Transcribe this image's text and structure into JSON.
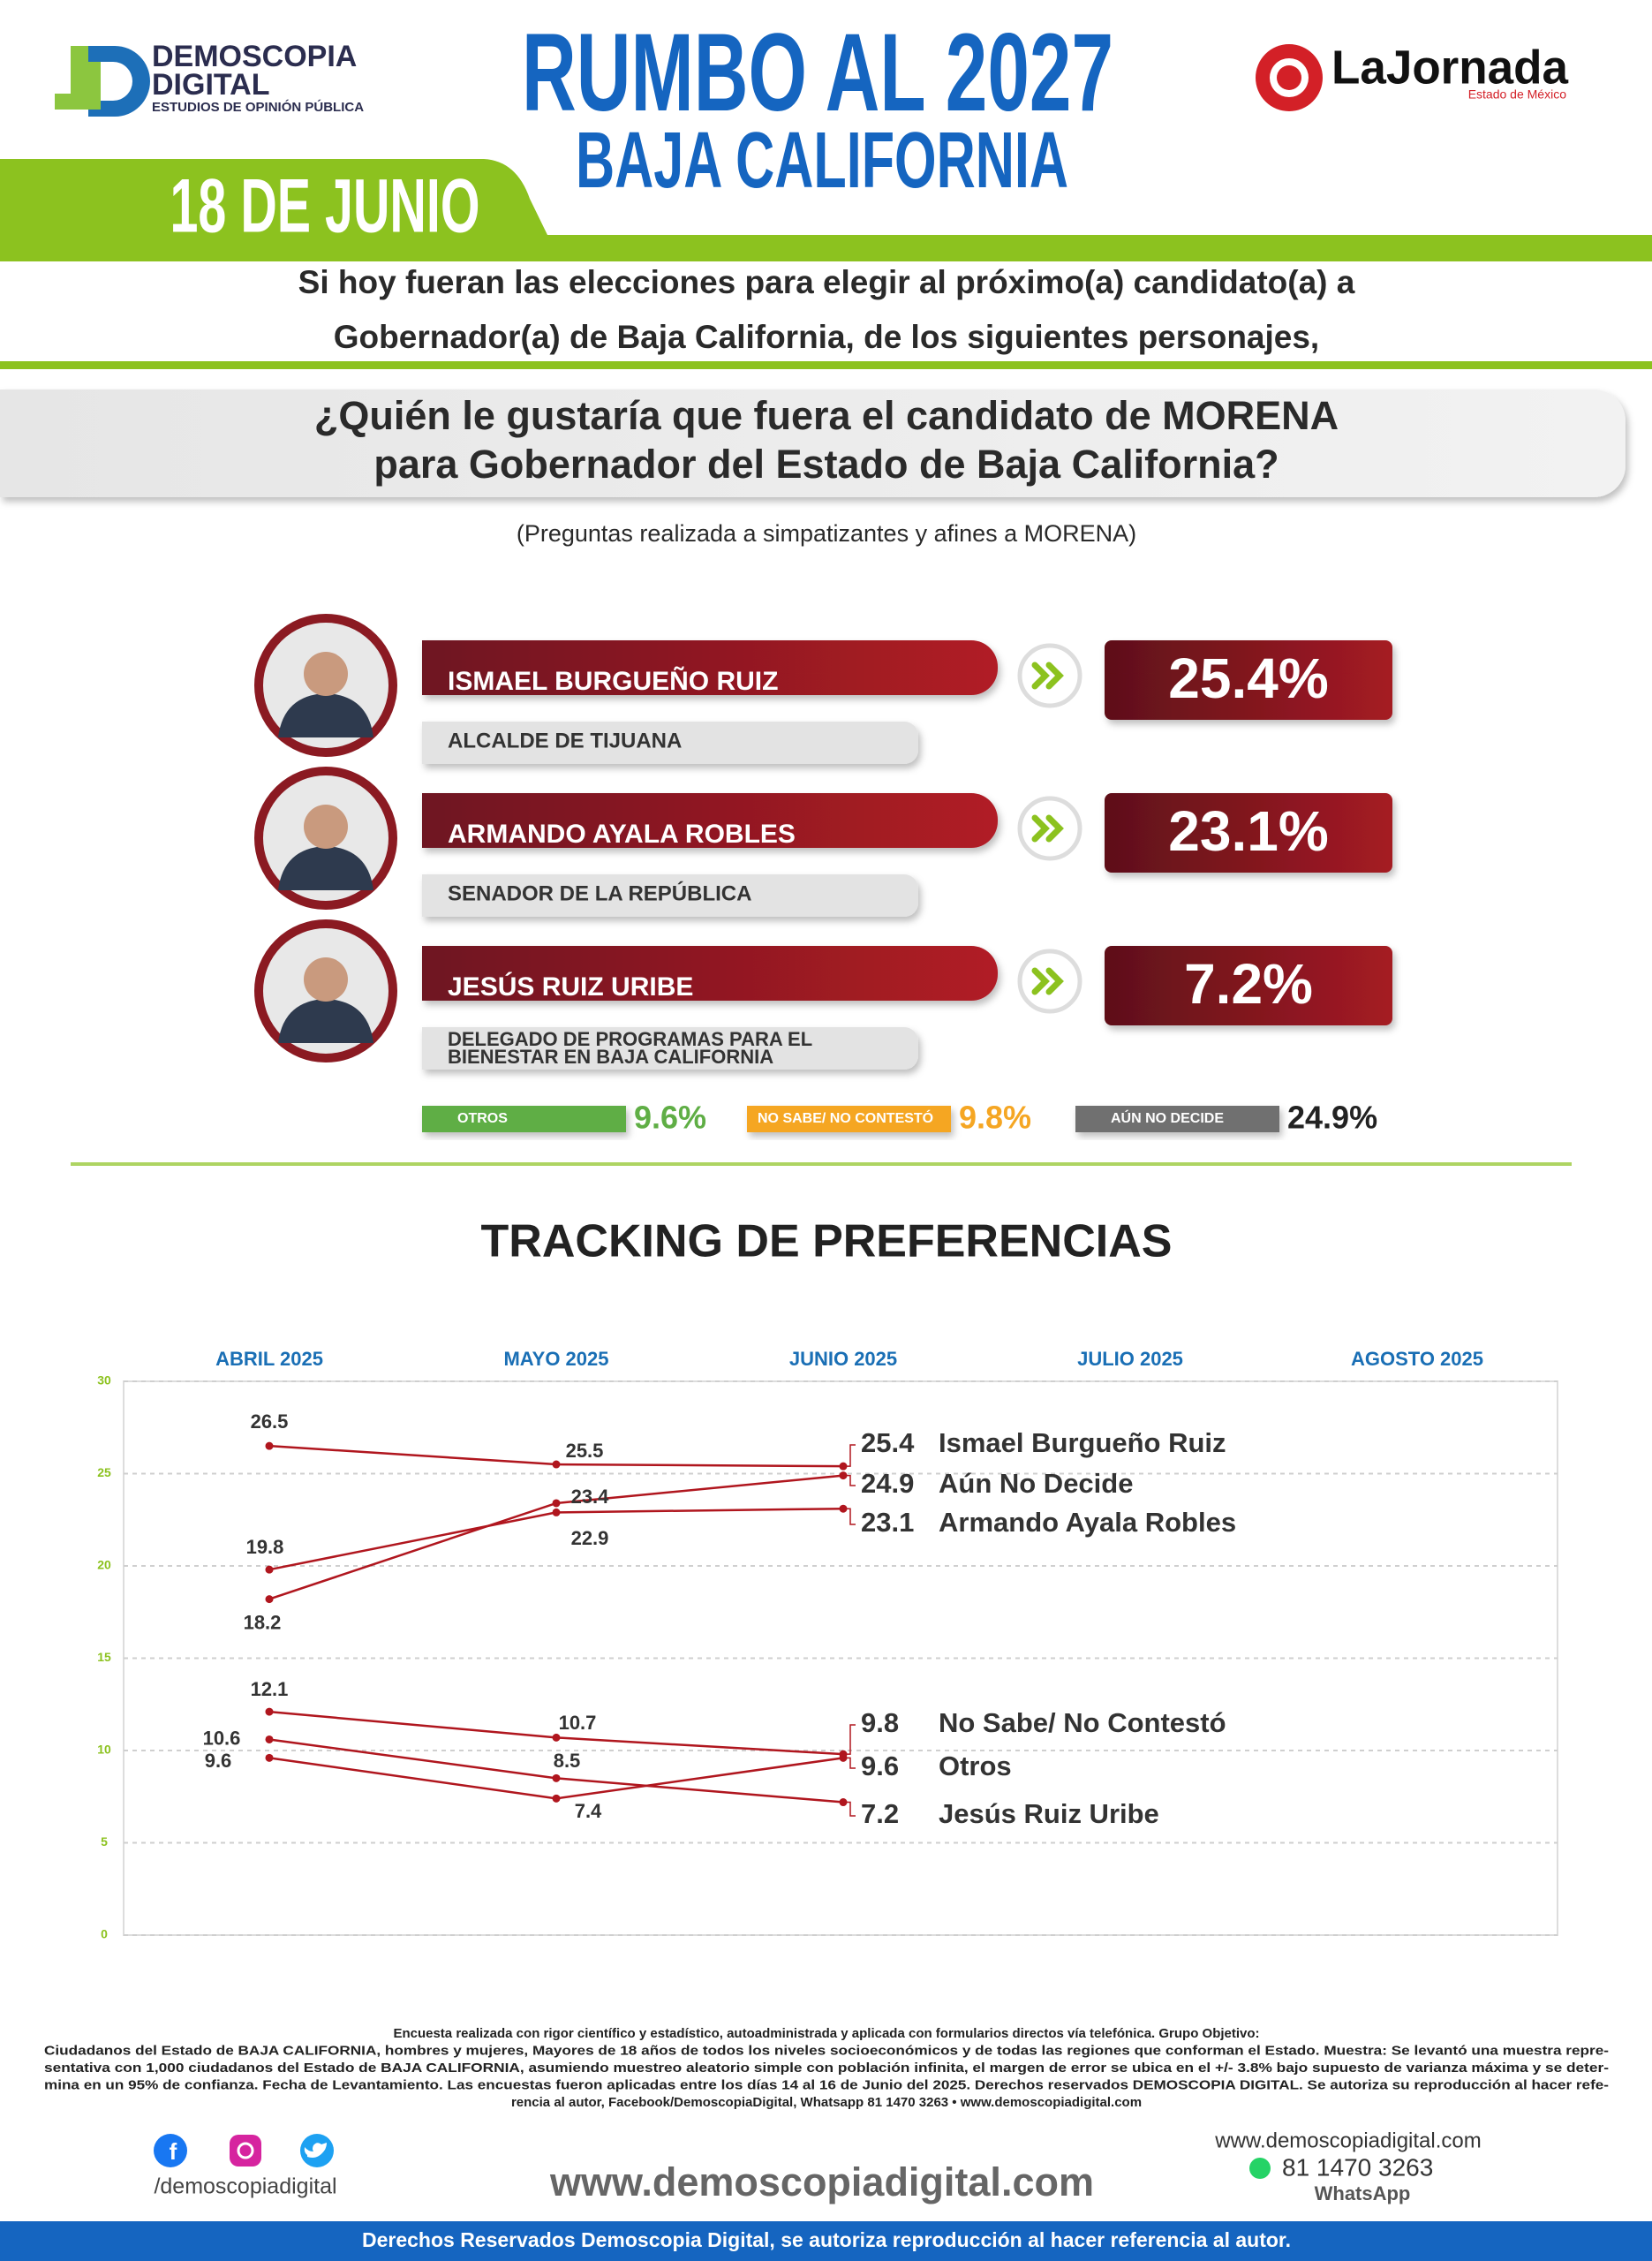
{
  "header": {
    "brand": [
      "DEMOSCOPIA",
      "DIGITAL"
    ],
    "tagline": "ESTUDIOS DE OPINIÓN PÚBLICA",
    "title": "RUMBO AL 2027",
    "subtitle": "BAJA CALIFORNIA",
    "date": "18 DE JUNIO",
    "partner": "LaJornada",
    "partner_sub": "Estado de México"
  },
  "intro": [
    "Si hoy fueran las elecciones para elegir al próximo(a) candidato(a) a",
    "Gobernador(a) de Baja California, de los siguientes personajes,"
  ],
  "question": [
    "¿Quién le gustaría que fuera el candidato de MORENA",
    "para Gobernador del Estado de Baja California?"
  ],
  "note": "(Preguntas realizada a simpatizantes y afines a MORENA)",
  "candidates": [
    {
      "name": "ISMAEL BURGUEÑO RUIZ",
      "role": [
        "ALCALDE DE TIJUANA"
      ],
      "share": "25.4%"
    },
    {
      "name": "ARMANDO AYALA ROBLES",
      "role": [
        "SENADOR DE LA REPÚBLICA"
      ],
      "share": "23.1%"
    },
    {
      "name": "JESÚS RUIZ URIBE",
      "role": [
        "DELEGADO DE PROGRAMAS PARA EL",
        "BIENESTAR EN BAJA CALIFORNIA"
      ],
      "share": "7.2%"
    }
  ],
  "others": [
    {
      "label": "OTROS",
      "share": "9.6%",
      "color": "#5fae45"
    },
    {
      "label": "NO SABE/ NO CONTESTÓ",
      "share": "9.8%",
      "color": "#f5a623"
    },
    {
      "label": "AÚN NO DECIDE",
      "share": "24.9%",
      "color": "#222222"
    }
  ],
  "chart_data": {
    "type": "line",
    "title": "TRACKING DE PREFERENCIAS",
    "categories": [
      "ABRIL 2025",
      "MAYO 2025",
      "JUNIO 2025",
      "JULIO 2025",
      "AGOSTO 2025"
    ],
    "series": [
      {
        "name": "Ismael Burgueño Ruiz",
        "color": "#b0161e",
        "values": [
          26.5,
          25.5,
          25.4,
          null,
          null
        ]
      },
      {
        "name": "Aún No Decide",
        "color": "#b0161e",
        "values": [
          18.2,
          23.4,
          24.9,
          null,
          null
        ]
      },
      {
        "name": "Armando Ayala Robles",
        "color": "#b0161e",
        "values": [
          19.8,
          22.9,
          23.1,
          null,
          null
        ]
      },
      {
        "name": "No Sabe/ No Contestó",
        "color": "#b0161e",
        "values": [
          12.1,
          10.7,
          9.8,
          null,
          null
        ]
      },
      {
        "name": "Otros",
        "color": "#b0161e",
        "values": [
          9.6,
          7.4,
          9.6,
          null,
          null
        ]
      },
      {
        "name": "Jesús Ruiz Uribe",
        "color": "#b0161e",
        "values": [
          10.6,
          8.5,
          7.2,
          null,
          null
        ]
      }
    ],
    "ylim": [
      0,
      30
    ],
    "yticks": [
      0,
      5,
      10,
      15,
      20,
      25,
      30
    ],
    "grid": true
  },
  "footer": {
    "methodology": [
      "Encuesta realizada con rigor científico y estadístico, autoadministrada y aplicada con formularios directos vía telefónica. Grupo Objetivo:",
      "Ciudadanos del Estado de BAJA CALIFORNIA, hombres y mujeres, Mayores de 18 años de todos los niveles socioeconómicos y de todas las regiones que conforman el Estado. Muestra: Se levantó una muestra repre-",
      "sentativa con 1,000 ciudadanos del Estado de BAJA CALIFORNIA, asumiendo muestreo aleatorio simple con población infinita, el margen de error se ubica en el +/- 3.8% bajo supuesto de varianza máxima y se deter-",
      "mina en un 95% de confianza. Fecha de Levantamiento. Las encuestas fueron aplicadas entre los días 14 al 16 de Junio del 2025. Derechos reservados DEMOSCOPIA DIGITAL. Se autoriza su reproducción al hacer refe-",
      "rencia al autor, Facebook/DemoscopiaDigital, Whatsapp 81 1470 3263 • www.demoscopiadigital.com"
    ],
    "social": "/demoscopiadigital",
    "website": "www.demoscopiadigital.com",
    "website_small": "www.demoscopiadigital.com",
    "phone": "81 1470 3263",
    "whatsapp": "WhatsApp",
    "copyright": "Derechos Reservados Demoscopia Digital, se autoriza reproducción al hacer referencia al autor."
  }
}
